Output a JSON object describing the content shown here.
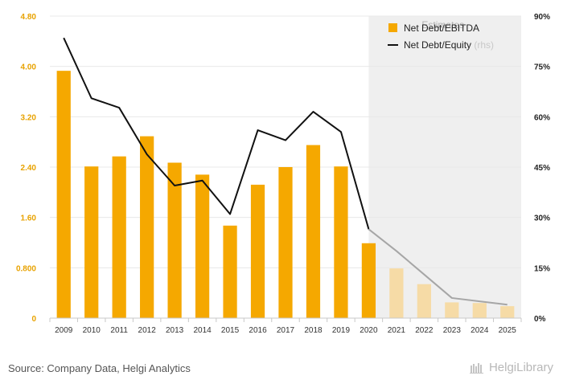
{
  "chart_data": {
    "type": "bar",
    "categories": [
      "2009",
      "2010",
      "2011",
      "2012",
      "2013",
      "2014",
      "2015",
      "2016",
      "2017",
      "2018",
      "2019",
      "2020",
      "2021",
      "2022",
      "2023",
      "2024",
      "2025"
    ],
    "estimate_start_index": 12,
    "estimates_label": "Estimates",
    "series": [
      {
        "name": "Net Debt/EBITDA",
        "type": "bar",
        "axis": "left",
        "values": [
          3.93,
          2.41,
          2.57,
          2.89,
          2.47,
          2.28,
          1.47,
          2.12,
          2.4,
          2.75,
          2.41,
          1.19,
          0.79,
          0.54,
          0.25,
          0.24,
          0.19
        ]
      },
      {
        "name": "Net Debt/Equity",
        "legend_suffix": "(rhs)",
        "type": "line",
        "axis": "right",
        "values": [
          83.5,
          65.5,
          62.7,
          48.8,
          39.5,
          41.0,
          31.0,
          56.0,
          53.0,
          61.5,
          55.5,
          26.5,
          20.0,
          13.0,
          6.0,
          5.0,
          4.0
        ]
      }
    ],
    "y_left": {
      "ylim": [
        0,
        4.8
      ],
      "ticks": [
        0,
        0.8,
        1.6,
        2.4,
        3.2,
        4.0,
        4.8
      ],
      "tick_labels": [
        "0",
        "0.800",
        "1.60",
        "2.40",
        "3.20",
        "4.00",
        "4.80"
      ]
    },
    "y_right": {
      "ylim": [
        0,
        90
      ],
      "ticks": [
        0,
        15,
        30,
        45,
        60,
        75,
        90
      ],
      "tick_labels": [
        "0%",
        "15%",
        "30%",
        "45%",
        "60%",
        "75%",
        "90%"
      ]
    },
    "grid": true,
    "legend_position": "top-right",
    "colors": {
      "bar_actual": "#f5a800",
      "bar_estimate": "#f6dba6",
      "line_actual": "#111111",
      "line_estimate": "#a6a6a6",
      "estimate_band": "#efefef",
      "grid": "#e8e8e8"
    }
  },
  "footer": {
    "source": "Source: Company Data, Helgi Analytics",
    "brand": "HelgiLibrary"
  }
}
